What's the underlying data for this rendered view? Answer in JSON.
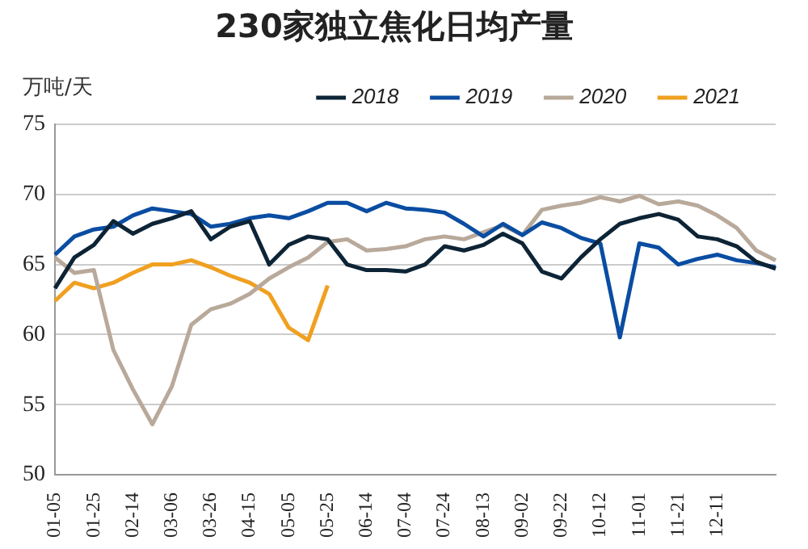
{
  "chart_data": {
    "type": "line",
    "title": "230家独立焦化日均产量",
    "ylabel": "万吨/天",
    "categories": [
      "01-05",
      null,
      "01-25",
      null,
      "02-14",
      null,
      "03-06",
      null,
      "03-26",
      null,
      "04-15",
      null,
      "05-05",
      null,
      "05-25",
      null,
      "06-14",
      null,
      "07-04",
      null,
      "07-24",
      null,
      "08-13",
      null,
      "09-02",
      null,
      "09-22",
      null,
      "10-12",
      null,
      "11-01",
      null,
      "11-21",
      null,
      "12-11",
      null,
      null,
      null
    ],
    "series": [
      {
        "name": "2018",
        "color": "#0d2436",
        "values": [
          63.3,
          65.5,
          66.4,
          68.1,
          67.2,
          67.9,
          68.3,
          68.8,
          66.8,
          67.7,
          68.1,
          65.0,
          66.4,
          67.0,
          66.8,
          65.0,
          64.6,
          64.6,
          64.5,
          65.0,
          66.3,
          66.0,
          66.4,
          67.2,
          66.5,
          64.5,
          64.0,
          65.5,
          66.8,
          67.9,
          68.3,
          68.6,
          68.2,
          67.0,
          66.8,
          66.3,
          65.2,
          64.7
        ]
      },
      {
        "name": "2019",
        "color": "#0a4da2",
        "values": [
          65.7,
          67.0,
          67.5,
          67.7,
          68.5,
          69.0,
          68.8,
          68.6,
          67.7,
          67.9,
          68.3,
          68.5,
          68.3,
          68.8,
          69.4,
          69.4,
          68.8,
          69.4,
          69.0,
          68.9,
          68.7,
          67.9,
          67.0,
          67.9,
          67.1,
          68.0,
          67.6,
          66.9,
          66.5,
          59.8,
          66.5,
          66.2,
          65.0,
          65.4,
          65.7,
          65.3,
          65.1,
          64.8
        ]
      },
      {
        "name": "2020",
        "color": "#b8a99a",
        "values": [
          65.5,
          64.4,
          64.6,
          58.9,
          56.1,
          53.6,
          56.3,
          60.7,
          61.8,
          62.2,
          62.9,
          64.0,
          64.8,
          65.5,
          66.6,
          66.8,
          66.0,
          66.1,
          66.3,
          66.8,
          67.0,
          66.8,
          67.3,
          67.8,
          67.1,
          68.9,
          69.2,
          69.4,
          69.8,
          69.5,
          69.9,
          69.3,
          69.5,
          69.2,
          68.5,
          67.6,
          66.0,
          65.3
        ]
      },
      {
        "name": "2021",
        "color": "#f0a020",
        "values": [
          62.4,
          63.7,
          63.3,
          63.7,
          64.4,
          65.0,
          65.0,
          65.3,
          64.8,
          64.2,
          63.7,
          62.9,
          60.5,
          59.6,
          63.5,
          null,
          null,
          null,
          null,
          null,
          null,
          null,
          null,
          null,
          null,
          null,
          null,
          null,
          null,
          null,
          null,
          null,
          null,
          null,
          null,
          null,
          null,
          null
        ]
      }
    ],
    "ylim": [
      50,
      75
    ],
    "yticks": [
      50,
      55,
      60,
      65,
      70,
      75
    ],
    "grid": "y",
    "legend": "top",
    "marker": "none",
    "line_style": "solid"
  }
}
